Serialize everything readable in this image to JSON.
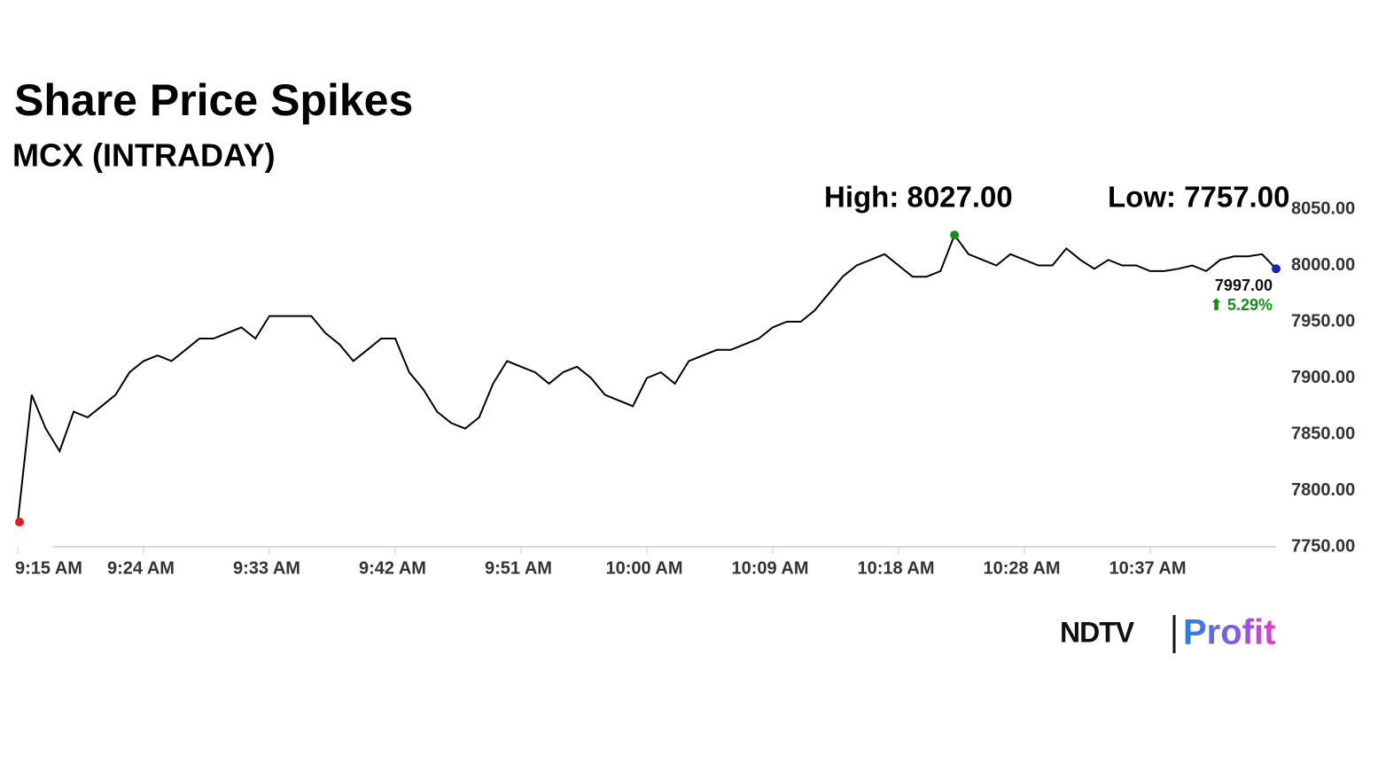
{
  "chart_data": {
    "type": "line",
    "title": "Share Price Spikes",
    "subtitle": "MCX (INTRADAY)",
    "annotations": {
      "high": "High: 8027.00",
      "low": "Low: 7757.00",
      "last": "7997.00",
      "change": "⬆ 5.29%"
    },
    "categories": [
      "9:15 AM",
      null,
      null,
      null,
      null,
      null,
      null,
      null,
      null,
      "9:24 AM",
      null,
      null,
      null,
      null,
      null,
      null,
      null,
      null,
      "9:33 AM",
      null,
      null,
      null,
      null,
      null,
      null,
      null,
      null,
      "9:42 AM",
      null,
      null,
      null,
      null,
      null,
      null,
      null,
      null,
      "9:51 AM",
      null,
      null,
      null,
      null,
      null,
      null,
      null,
      null,
      "10:00 AM",
      null,
      null,
      null,
      null,
      null,
      null,
      null,
      null,
      "10:09 AM",
      null,
      null,
      null,
      null,
      null,
      null,
      null,
      null,
      "10:18 AM",
      null,
      null,
      null,
      null,
      null,
      null,
      null,
      null,
      "10:28 AM",
      null,
      null,
      null,
      null,
      null,
      null,
      null,
      null,
      "10:37 AM",
      null,
      null,
      null,
      null,
      null,
      null,
      null,
      null,
      null
    ],
    "values": [
      7772,
      7885,
      7855,
      7835,
      7870,
      7865,
      7875,
      7885,
      7905,
      7915,
      7920,
      7915,
      7925,
      7935,
      7935,
      7940,
      7945,
      7935,
      7955,
      7955,
      7955,
      7955,
      7940,
      7930,
      7915,
      7925,
      7935,
      7935,
      7905,
      7890,
      7870,
      7860,
      7855,
      7865,
      7895,
      7915,
      7910,
      7905,
      7895,
      7905,
      7910,
      7900,
      7885,
      7880,
      7875,
      7900,
      7905,
      7895,
      7915,
      7920,
      7925,
      7925,
      7930,
      7935,
      7945,
      7950,
      7950,
      7960,
      7975,
      7990,
      8000,
      8005,
      8010,
      8000,
      7990,
      7990,
      7995,
      8027,
      8010,
      8005,
      8000,
      8010,
      8005,
      8000,
      8000,
      8015,
      8005,
      7997,
      8005,
      8000,
      8000,
      7995,
      7995,
      7997,
      8000,
      7995,
      8005,
      8008,
      8008,
      8010,
      7997
    ],
    "color": "#000000",
    "high_color": "#1a8a1a",
    "low_color": "#e02020",
    "last_color": "#1f1fb0",
    "change_color": "#1a8a1a",
    "ylim": [
      7750,
      8050
    ],
    "yticks": [
      {
        "value": 7750,
        "label": "7750.00"
      },
      {
        "value": 7800,
        "label": "7800.00"
      },
      {
        "value": 7850,
        "label": "7850.00"
      },
      {
        "value": 7900,
        "label": "7900.00"
      },
      {
        "value": 7950,
        "label": "7950.00"
      },
      {
        "value": 8000,
        "label": "8000.00"
      },
      {
        "value": 8050,
        "label": "8050.00"
      }
    ],
    "grid": false
  },
  "logo": {
    "left": "NDTV",
    "right": "Profit"
  }
}
